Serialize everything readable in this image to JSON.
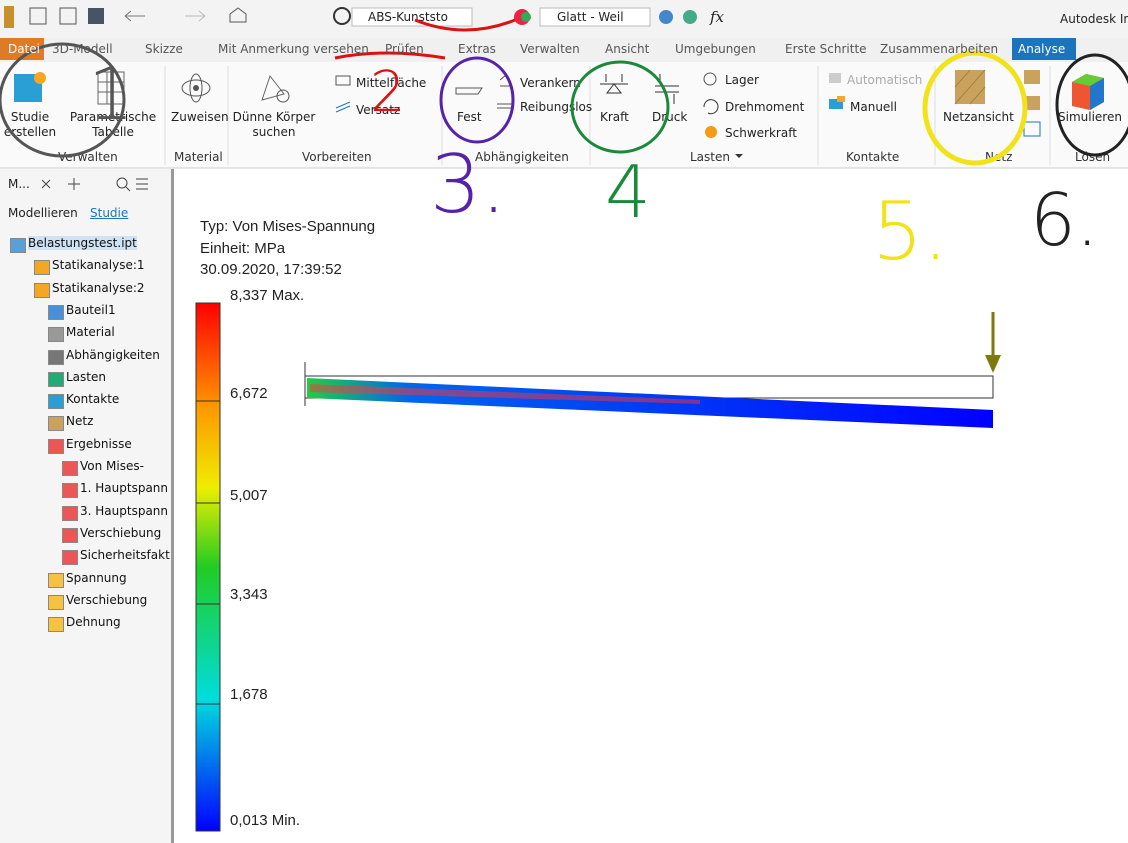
{
  "quick_access": {
    "material": "ABS-Kunststo",
    "appearance": "Glatt - Weil",
    "formula": "fx",
    "app_title": "Autodesk In"
  },
  "tabs": [
    "Datei",
    "3D-Modell",
    "Skizze",
    "Mit Anmerkung versehen",
    "Prüfen",
    "Extras",
    "Verwalten",
    "Ansicht",
    "Umgebungen",
    "Erste Schritte",
    "Zusammenarbeiten",
    "Analyse"
  ],
  "ribbon": {
    "buttons": [
      "Studie erstellen",
      "Parametrische Tabelle",
      "Zuweisen",
      "Dünne Körper suchen",
      "Mittelfläche",
      "Versatz",
      "Fest",
      "Verankern",
      "Reibungslos",
      "Kraft",
      "Druck",
      "Lager",
      "Drehmoment",
      "Schwerkraft",
      "Automatisch",
      "Manuell",
      "Netzansicht",
      "Simulieren"
    ],
    "groups": [
      "Verwalten",
      "Material",
      "Vorbereiten",
      "Abhängigkeiten",
      "Lasten",
      "Kontakte",
      "Netz",
      "Lösen"
    ]
  },
  "browser": {
    "header": "M...",
    "tabs": [
      "Modellieren",
      "Studie"
    ],
    "items": [
      "Belastungstest.ipt",
      "Statikanalyse:1",
      "Statikanalyse:2",
      "Bauteil1",
      "Material",
      "Abhängigkeiten",
      "Lasten",
      "Kontakte",
      "Netz",
      "Ergebnisse",
      "Von Mises-",
      "1. Hauptspann",
      "3. Hauptspann",
      "Verschiebung",
      "Sicherheitsfakt",
      "Spannung",
      "Verschiebung",
      "Dehnung"
    ]
  },
  "result": {
    "type": "Typ: Von Mises-Spannung",
    "unit": "Einheit: MPa",
    "timestamp": "30.09.2020, 17:39:52",
    "legend": [
      "8,337 Max.",
      "6,672",
      "5,007",
      "3,343",
      "1,678",
      "0,013 Min."
    ]
  },
  "annotations": [
    "1",
    "2",
    "3.",
    "4",
    "5.",
    "6."
  ]
}
